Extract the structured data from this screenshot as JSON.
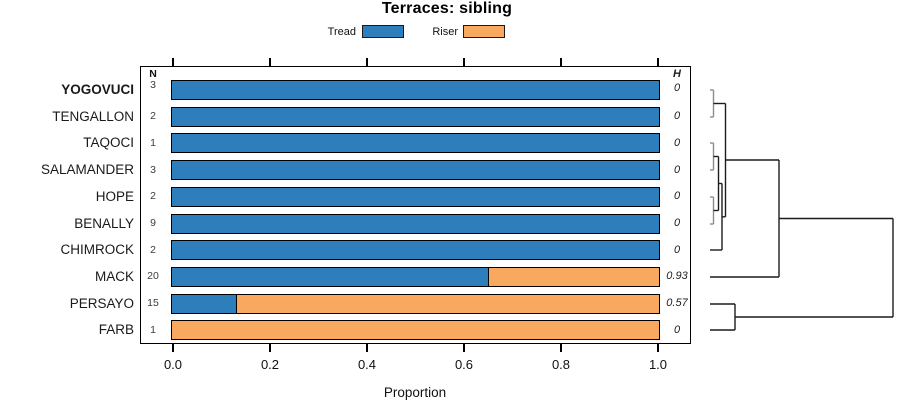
{
  "title": "Terraces: sibling",
  "legend": {
    "items": [
      {
        "label": "Tread",
        "color": "#2E7EBB"
      },
      {
        "label": "Riser",
        "color": "#F9A95F"
      }
    ]
  },
  "table": {
    "n_header": "N",
    "h_header": "H",
    "rows": [
      {
        "label": "YOGOVUCI",
        "bold": true,
        "n": "3",
        "h": "0",
        "tread": 1.0
      },
      {
        "label": "TENGALLON",
        "bold": false,
        "n": "2",
        "h": "0",
        "tread": 1.0
      },
      {
        "label": "TAQOCI",
        "bold": false,
        "n": "1",
        "h": "0",
        "tread": 1.0
      },
      {
        "label": "SALAMANDER",
        "bold": false,
        "n": "3",
        "h": "0",
        "tread": 1.0
      },
      {
        "label": "HOPE",
        "bold": false,
        "n": "2",
        "h": "0",
        "tread": 1.0
      },
      {
        "label": "BENALLY",
        "bold": false,
        "n": "9",
        "h": "0",
        "tread": 1.0
      },
      {
        "label": "CHIMROCK",
        "bold": false,
        "n": "2",
        "h": "0",
        "tread": 1.0
      },
      {
        "label": "MACK",
        "bold": false,
        "n": "20",
        "h": "0.93",
        "tread": 0.65
      },
      {
        "label": "PERSAYO",
        "bold": false,
        "n": "15",
        "h": "0.57",
        "tread": 0.133
      },
      {
        "label": "FARB",
        "bold": false,
        "n": "1",
        "h": "0",
        "tread": 0.0
      }
    ]
  },
  "axis": {
    "label": "Proportion",
    "tick_labels": [
      "0.0",
      "0.2",
      "0.4",
      "0.6",
      "0.8",
      "1.0"
    ],
    "tick_values": [
      0.0,
      0.2,
      0.4,
      0.6,
      0.8,
      1.0
    ]
  },
  "chart_data": {
    "type": "bar",
    "orientation": "horizontal",
    "stacked": true,
    "title": "Terraces: sibling",
    "xlabel": "Proportion",
    "xlim": [
      0,
      1
    ],
    "x_ticks": [
      0.0,
      0.2,
      0.4,
      0.6,
      0.8,
      1.0
    ],
    "legend_position": "top",
    "categories": [
      "YOGOVUCI",
      "TENGALLON",
      "TAQOCI",
      "SALAMANDER",
      "HOPE",
      "BENALLY",
      "CHIMROCK",
      "MACK",
      "PERSAYO",
      "FARB"
    ],
    "n_values": [
      3,
      2,
      1,
      3,
      2,
      9,
      2,
      20,
      15,
      1
    ],
    "h_values": [
      0,
      0,
      0,
      0,
      0,
      0,
      0,
      0.93,
      0.57,
      0
    ],
    "series": [
      {
        "name": "Tread",
        "color": "#2E7EBB",
        "values": [
          1,
          1,
          1,
          1,
          1,
          1,
          1,
          0.65,
          0.133,
          0
        ]
      },
      {
        "name": "Riser",
        "color": "#F9A95F",
        "values": [
          0,
          0,
          0,
          0,
          0,
          0,
          0,
          0.35,
          0.867,
          1
        ]
      }
    ],
    "dendrogram": {
      "side": "right",
      "colors": {
        "gray": "#8C8C8C",
        "black": "#1C1C1C"
      },
      "merges_note": "((YOGOVUCI,TENGALLON),(((TAQOCI,SALAMANDER),(HOPE,BENALLY)),CHIMROCK)) joins MACK, then joins (PERSAYO,FARB) at max height",
      "segments": [
        [
          710,
          90,
          713.5,
          90,
          "gray"
        ],
        [
          713.5,
          90,
          713.5,
          117,
          "gray"
        ],
        [
          710,
          117,
          713.5,
          117,
          "gray"
        ],
        [
          710,
          143,
          713.5,
          143,
          "gray"
        ],
        [
          713.5,
          143,
          713.5,
          170,
          "gray"
        ],
        [
          710,
          170,
          713.5,
          170,
          "gray"
        ],
        [
          710,
          197,
          713.5,
          197,
          "gray"
        ],
        [
          713.5,
          197,
          713.5,
          224,
          "gray"
        ],
        [
          710,
          224,
          713.5,
          224,
          "gray"
        ],
        [
          713.5,
          103.5,
          725.5,
          103.5,
          "black"
        ],
        [
          713.5,
          156.5,
          718.5,
          156.5,
          "black"
        ],
        [
          713.5,
          210.5,
          718.5,
          210.5,
          "black"
        ],
        [
          718.5,
          156.5,
          718.5,
          210.5,
          "black"
        ],
        [
          718.5,
          183.5,
          722,
          183.5,
          "black"
        ],
        [
          710,
          250,
          722,
          250,
          "black"
        ],
        [
          722,
          183.5,
          722,
          250,
          "black"
        ],
        [
          722,
          216.8,
          725.5,
          216.8,
          "black"
        ],
        [
          725.5,
          103.5,
          725.5,
          216.8,
          "black"
        ],
        [
          725.5,
          160,
          779,
          160,
          "black"
        ],
        [
          710,
          277,
          779,
          277,
          "black"
        ],
        [
          779,
          160,
          779,
          277,
          "black"
        ],
        [
          779,
          218.5,
          893,
          218.5,
          "black"
        ],
        [
          710,
          304,
          735,
          304,
          "black"
        ],
        [
          710,
          330,
          735,
          330,
          "black"
        ],
        [
          735,
          304,
          735,
          330,
          "black"
        ],
        [
          735,
          317,
          893,
          317,
          "black"
        ],
        [
          893,
          218.5,
          893,
          317,
          "black"
        ]
      ]
    }
  }
}
